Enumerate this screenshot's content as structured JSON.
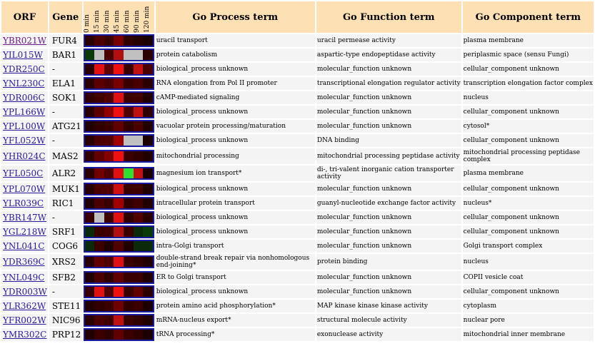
{
  "headers": {
    "orf": "ORF",
    "gene": "Gene",
    "timepoints": [
      "0 min",
      "15 min",
      "30 min",
      "45 min",
      "60 min",
      "90 min",
      "120 min"
    ],
    "process": "Go Process term",
    "function": "Go Function term",
    "component": "Go Component term"
  },
  "rows": [
    {
      "orf": "YBR021W",
      "gene": "FUR4",
      "process": "uracil transport",
      "function": "uracil permease activity",
      "component": "plasma membrane",
      "colors": [
        "#2a0000",
        "#4a0000",
        "#3a0000",
        "#7a0000",
        "#300000",
        "#250000",
        "#1a0000"
      ]
    },
    {
      "orf": "YIL015W",
      "gene": "BAR1",
      "process": "protein catabolism",
      "function": "aspartic-type endopeptidase activity",
      "component": "periplasmic space (sensu Fungi)",
      "colors": [
        "#0a3a0a",
        "#c0c0c0",
        "#4a0000",
        "#b01010",
        "#c0c0c0",
        "#c0c0c0",
        "#2a0000"
      ]
    },
    {
      "orf": "YDR250C",
      "gene": "-",
      "process": "biological_process unknown",
      "function": "molecular_function unknown",
      "component": "cellular_component unknown",
      "colors": [
        "#2a0000",
        "#e01010",
        "#600000",
        "#f01010",
        "#3a0000",
        "#c01010",
        "#4a0000"
      ]
    },
    {
      "orf": "YNL230C",
      "gene": "ELA1",
      "process": "RNA elongation from Pol II promoter",
      "function": "transcriptional elongation regulator activity",
      "component": "transcription elongation factor complex",
      "colors": [
        "#2a0000",
        "#5a0000",
        "#4a0000",
        "#7a0000",
        "#3a0000",
        "#4a0000",
        "#2a0000"
      ]
    },
    {
      "orf": "YDR006C",
      "gene": "SOK1",
      "process": "cAMP-mediated signaling",
      "function": "molecular_function unknown",
      "component": "nucleus",
      "colors": [
        "#300000",
        "#400000",
        "#500000",
        "#e01010",
        "#3a0000",
        "#400000",
        "#200000"
      ]
    },
    {
      "orf": "YPL166W",
      "gene": "-",
      "process": "biological_process unknown",
      "function": "molecular_function unknown",
      "component": "cellular_component unknown",
      "colors": [
        "#2a0000",
        "#5a0000",
        "#900000",
        "#f01010",
        "#500000",
        "#c01010",
        "#300000"
      ]
    },
    {
      "orf": "YPL100W",
      "gene": "ATG21",
      "process": "vacuolar protein processing/maturation",
      "function": "molecular_function unknown",
      "component": "cytosol*",
      "colors": [
        "#200000",
        "#300000",
        "#3a0000",
        "#600000",
        "#300000",
        "#4a0000",
        "#200000"
      ]
    },
    {
      "orf": "YFL052W",
      "gene": "-",
      "process": "biological_process unknown",
      "function": "DNA binding",
      "component": "cellular_component unknown",
      "colors": [
        "#2a0000",
        "#4a0000",
        "#500000",
        "#a00000",
        "#c0c0c0",
        "#c0c0c0",
        "#1a0000"
      ]
    },
    {
      "orf": "YHR024C",
      "gene": "MAS2",
      "process": "mitochondrial processing",
      "function": "mitochondrial processing peptidase activity",
      "component": "mitochondrial processing peptidase complex",
      "colors": [
        "#300000",
        "#600000",
        "#800000",
        "#f01010",
        "#3a0000",
        "#300000",
        "#200000"
      ],
      "tall": true
    },
    {
      "orf": "YFL050C",
      "gene": "ALR2",
      "process": "magnesium ion transport*",
      "function": "di-, tri-valent inorganic cation transporter activity",
      "component": "plasma membrane",
      "colors": [
        "#2a0000",
        "#700000",
        "#500000",
        "#e01010",
        "#30e030",
        "#c01010",
        "#1a0000"
      ],
      "tall": true
    },
    {
      "orf": "YPL070W",
      "gene": "MUK1",
      "process": "biological_process unknown",
      "function": "molecular_function unknown",
      "component": "cellular_component unknown",
      "colors": [
        "#2a0000",
        "#4a0000",
        "#500000",
        "#d01010",
        "#3a0000",
        "#400000",
        "#200000"
      ]
    },
    {
      "orf": "YLR039C",
      "gene": "RIC1",
      "process": "intracellular protein transport",
      "function": "guanyl-nucleotide exchange factor activity",
      "component": "nucleus*",
      "colors": [
        "#200000",
        "#4a0000",
        "#3a0000",
        "#a00000",
        "#300000",
        "#400000",
        "#200000"
      ]
    },
    {
      "orf": "YBR147W",
      "gene": "-",
      "process": "biological_process unknown",
      "function": "molecular_function unknown",
      "component": "cellular_component unknown",
      "colors": [
        "#3a0000",
        "#c0c0c0",
        "#3a0000",
        "#e01010",
        "#300000",
        "#500000",
        "#2a0000"
      ]
    },
    {
      "orf": "YGL218W",
      "gene": "SRF1",
      "process": "biological_process unknown",
      "function": "molecular_function unknown",
      "component": "cellular_component unknown",
      "colors": [
        "#0a2a0a",
        "#3a0000",
        "#400000",
        "#b01010",
        "#3a0000",
        "#0a2a0a",
        "#0a3a0a"
      ]
    },
    {
      "orf": "YNL041C",
      "gene": "COG6",
      "process": "intra-Golgi transport",
      "function": "molecular_function unknown",
      "component": "Golgi transport complex",
      "colors": [
        "#0a2a0a",
        "#3a0000",
        "#200000",
        "#500000",
        "#200000",
        "#0a2a0a",
        "#0a2a0a"
      ]
    },
    {
      "orf": "YDR369C",
      "gene": "XRS2",
      "process": "double-strand break repair via nonhomologous end-joining*",
      "function": "protein binding",
      "component": "nucleus",
      "colors": [
        "#2a0000",
        "#600000",
        "#500000",
        "#e01010",
        "#3a0000",
        "#300000",
        "#200000"
      ],
      "tall": true
    },
    {
      "orf": "YNL049C",
      "gene": "SFB2",
      "process": "ER to Golgi transport",
      "function": "molecular_function unknown",
      "component": "COPII vesicle coat",
      "colors": [
        "#200000",
        "#4a0000",
        "#300000",
        "#600000",
        "#3a0000",
        "#3a0000",
        "#200000"
      ]
    },
    {
      "orf": "YDR003W",
      "gene": "-",
      "process": "biological_process unknown",
      "function": "molecular_function unknown",
      "component": "cellular_component unknown",
      "colors": [
        "#3a0000",
        "#e01010",
        "#500000",
        "#f01010",
        "#3a0000",
        "#600000",
        "#2a0000"
      ]
    },
    {
      "orf": "YLR362W",
      "gene": "STE11",
      "process": "protein amino acid phosphorylation*",
      "function": "MAP kinase kinase kinase activity",
      "component": "cytoplasm",
      "colors": [
        "#200000",
        "#300000",
        "#3a0000",
        "#700000",
        "#300000",
        "#3a0000",
        "#1a0000"
      ]
    },
    {
      "orf": "YFR002W",
      "gene": "NIC96",
      "process": "mRNA-nucleus export*",
      "function": "structural molecule activity",
      "component": "nuclear pore",
      "colors": [
        "#2a0000",
        "#4a0000",
        "#400000",
        "#c01010",
        "#3a0000",
        "#300000",
        "#200000"
      ]
    },
    {
      "orf": "YMR302C",
      "gene": "PRP12",
      "process": "tRNA processing*",
      "function": "exonuclease activity",
      "component": "mitochondrial inner membrane",
      "colors": [
        "#200000",
        "#3a0000",
        "#300000",
        "#600000",
        "#3a0000",
        "#300000",
        "#1a0000"
      ]
    }
  ]
}
